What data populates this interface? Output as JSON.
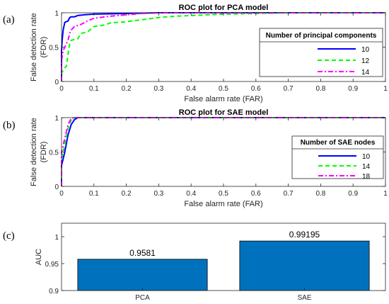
{
  "chart_data": [
    {
      "panel_label": "(a)",
      "type": "line",
      "title": "ROC plot for PCA model",
      "xlabel": "False alarm rate (FAR)",
      "ylabel": [
        "False detection rate",
        "(FDR)"
      ],
      "xlim": [
        0,
        1
      ],
      "ylim": [
        0,
        1
      ],
      "xticks": [
        "0",
        "0.1",
        "0.2",
        "0.3",
        "0.4",
        "0.5",
        "0.6",
        "0.7",
        "0.8",
        "0.9",
        "1"
      ],
      "yticks": [
        "0",
        "0.5",
        "1"
      ],
      "grid": false,
      "legend": {
        "title": "Number of principal components",
        "placement": "right"
      },
      "series": [
        {
          "name": "10",
          "color": "#0000FF",
          "style": "solid",
          "x": [
            0,
            0,
            0.002,
            0.005,
            0.01,
            0.015,
            0.02,
            0.025,
            0.03,
            0.04,
            0.05,
            0.07,
            0.1,
            0.15,
            0.2,
            0.25,
            0.3,
            1
          ],
          "y": [
            0,
            0.45,
            0.6,
            0.75,
            0.86,
            0.87,
            0.88,
            0.93,
            0.94,
            0.94,
            0.96,
            0.97,
            0.98,
            0.985,
            0.99,
            0.995,
            1,
            1
          ]
        },
        {
          "name": "12",
          "color": "#00FF00",
          "style": "dashed",
          "x": [
            0,
            0,
            0.005,
            0.01,
            0.015,
            0.02,
            0.025,
            0.03,
            0.05,
            0.06,
            0.08,
            0.1,
            0.13,
            0.15,
            0.2,
            0.25,
            0.3,
            0.35,
            0.4,
            0.45,
            0.5,
            0.6,
            0.7,
            1
          ],
          "y": [
            0,
            0.12,
            0.16,
            0.2,
            0.22,
            0.4,
            0.55,
            0.6,
            0.62,
            0.7,
            0.72,
            0.8,
            0.82,
            0.85,
            0.87,
            0.9,
            0.93,
            0.95,
            0.96,
            0.97,
            0.98,
            0.99,
            1,
            1
          ]
        },
        {
          "name": "14",
          "color": "#FF00FF",
          "style": "dashdot",
          "x": [
            0,
            0,
            0.005,
            0.01,
            0.02,
            0.025,
            0.03,
            0.04,
            0.06,
            0.08,
            0.1,
            0.15,
            0.2,
            0.25,
            0.3,
            1
          ],
          "y": [
            0,
            0.3,
            0.45,
            0.5,
            0.6,
            0.7,
            0.75,
            0.8,
            0.83,
            0.88,
            0.92,
            0.95,
            0.97,
            0.99,
            1,
            1
          ]
        }
      ]
    },
    {
      "panel_label": "(b)",
      "type": "line",
      "title": "ROC plot for SAE model",
      "xlabel": "False alarm rate (FAR)",
      "ylabel": [
        "False detection rate",
        "(FDR)"
      ],
      "xlim": [
        0,
        1
      ],
      "ylim": [
        0,
        1
      ],
      "xticks": [
        "0",
        "0.1",
        "0.2",
        "0.3",
        "0.4",
        "0.5",
        "0.6",
        "0.7",
        "0.8",
        "0.9",
        "1"
      ],
      "yticks": [
        "0",
        "0.5",
        "1"
      ],
      "grid": false,
      "legend": {
        "title": "Number of SAE nodes",
        "placement": "right"
      },
      "series": [
        {
          "name": "10",
          "color": "#0000FF",
          "style": "solid",
          "x": [
            0,
            0,
            0.01,
            0.02,
            0.03,
            0.04,
            0.05,
            1
          ],
          "y": [
            0,
            0.3,
            0.5,
            0.75,
            0.9,
            0.97,
            1,
            1
          ]
        },
        {
          "name": "14",
          "color": "#00FF00",
          "style": "dashed",
          "x": [
            0,
            0,
            0.01,
            0.02,
            0.03,
            0.04,
            1
          ],
          "y": [
            0,
            0.4,
            0.6,
            0.85,
            0.97,
            1,
            1
          ]
        },
        {
          "name": "18",
          "color": "#FF00FF",
          "style": "dashdot",
          "x": [
            0,
            0,
            0.01,
            0.02,
            0.03,
            0.04,
            1
          ],
          "y": [
            0,
            0.5,
            0.7,
            0.9,
            0.99,
            1,
            1
          ]
        }
      ]
    },
    {
      "panel_label": "(c)",
      "type": "bar",
      "ylabel": "AUC",
      "categories": [
        "PCA",
        "SAE"
      ],
      "values": [
        0.9581,
        0.99195
      ],
      "data_labels": [
        "0.9581",
        "0.99195"
      ],
      "ylim": [
        0.9,
        1.025
      ],
      "yticks": [
        0.9,
        0.95,
        1
      ],
      "ytick_labels": [
        "0.9",
        "0.95",
        "1"
      ],
      "grid": false,
      "color": "#0072BD"
    }
  ]
}
